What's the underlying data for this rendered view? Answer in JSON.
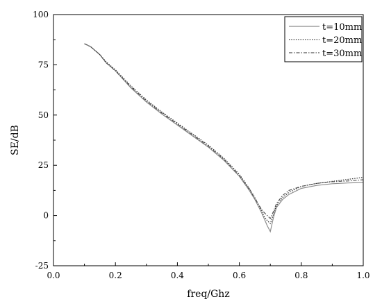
{
  "chart_data": {
    "type": "line",
    "xlabel": "freq/Ghz",
    "ylabel": "SE/dB",
    "xlim": [
      0.0,
      1.0
    ],
    "ylim": [
      -25,
      100
    ],
    "xticks": [
      "0.0",
      "0.2",
      "0.4",
      "0.6",
      "0.8",
      "1.0"
    ],
    "yticks": [
      "-25",
      "0",
      "25",
      "50",
      "75",
      "100"
    ],
    "grid": false,
    "legend_position": "top-right",
    "series": [
      {
        "name": "t=10mm",
        "style": "solid",
        "color": "#8c8c8c",
        "x": [
          0.1,
          0.12,
          0.15,
          0.17,
          0.2,
          0.25,
          0.3,
          0.35,
          0.4,
          0.45,
          0.5,
          0.55,
          0.6,
          0.63,
          0.65,
          0.67,
          0.68,
          0.69,
          0.7,
          0.71,
          0.72,
          0.74,
          0.76,
          0.8,
          0.85,
          0.9,
          0.95,
          1.0
        ],
        "y": [
          85.5,
          84.0,
          80.0,
          76.0,
          72.0,
          63.5,
          56.5,
          50.5,
          45.0,
          39.5,
          34.0,
          27.5,
          19.5,
          13.0,
          8.0,
          2.0,
          -1.5,
          -5.0,
          -8.0,
          -1.0,
          4.0,
          8.0,
          10.5,
          13.5,
          15.0,
          15.8,
          16.2,
          16.5
        ]
      },
      {
        "name": "t=20mm",
        "style": "dotted",
        "color": "#333333",
        "x": [
          0.1,
          0.12,
          0.15,
          0.17,
          0.2,
          0.25,
          0.3,
          0.35,
          0.4,
          0.45,
          0.5,
          0.55,
          0.6,
          0.63,
          0.65,
          0.67,
          0.68,
          0.69,
          0.7,
          0.71,
          0.72,
          0.74,
          0.76,
          0.8,
          0.85,
          0.9,
          0.95,
          1.0
        ],
        "y": [
          85.5,
          84.0,
          80.0,
          76.5,
          72.5,
          64.5,
          57.5,
          51.5,
          46.0,
          40.5,
          35.0,
          28.5,
          20.5,
          14.0,
          9.0,
          3.0,
          -0.5,
          -2.5,
          -4.0,
          0.5,
          5.0,
          9.0,
          11.5,
          14.5,
          16.0,
          17.0,
          18.0,
          19.0
        ]
      },
      {
        "name": "t=30mm",
        "style": "dashdot",
        "color": "#555555",
        "x": [
          0.1,
          0.12,
          0.15,
          0.17,
          0.2,
          0.25,
          0.3,
          0.35,
          0.4,
          0.45,
          0.5,
          0.55,
          0.6,
          0.63,
          0.65,
          0.67,
          0.68,
          0.69,
          0.7,
          0.71,
          0.72,
          0.74,
          0.76,
          0.8,
          0.85,
          0.9,
          0.95,
          1.0
        ],
        "y": [
          85.5,
          84.0,
          80.0,
          76.0,
          72.0,
          64.0,
          57.0,
          51.0,
          45.5,
          40.0,
          34.5,
          28.0,
          20.0,
          13.5,
          8.5,
          3.5,
          1.5,
          0.0,
          -1.5,
          2.0,
          6.0,
          10.0,
          12.5,
          14.5,
          16.0,
          16.8,
          17.2,
          17.8
        ]
      }
    ]
  }
}
